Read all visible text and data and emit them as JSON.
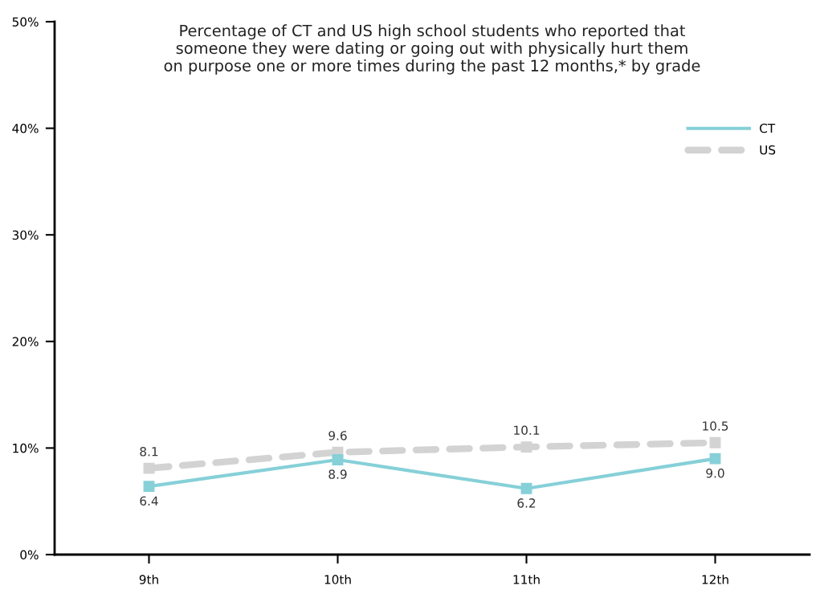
{
  "chart_data": {
    "type": "line",
    "title": "Percentage of CT and US high school students who reported that\nsomeone they were dating or going out with physically hurt them\non purpose one or more times during the past 12 months,* by grade",
    "categories": [
      "9th",
      "10th",
      "11th",
      "12th"
    ],
    "series": [
      {
        "name": "CT",
        "color": "#86d0d8",
        "values": [
          6.4,
          8.9,
          6.2,
          9.0
        ],
        "value_labels": [
          "6.4",
          "8.9",
          "6.2",
          "9.0"
        ],
        "line_style": "solid"
      },
      {
        "name": "US",
        "color": "#d3d3d3",
        "values": [
          8.1,
          9.6,
          10.1,
          10.5
        ],
        "value_labels": [
          "8.1",
          "9.6",
          "10.1",
          "10.5"
        ],
        "line_style": "dashed"
      }
    ],
    "ylim": [
      0,
      50
    ],
    "yticks": [
      {
        "value": 0,
        "label": "0%"
      },
      {
        "value": 10,
        "label": "10%"
      },
      {
        "value": 20,
        "label": "20%"
      },
      {
        "value": 30,
        "label": "30%"
      },
      {
        "value": 40,
        "label": "40%"
      },
      {
        "value": 50,
        "label": "50%"
      }
    ],
    "marker": "square",
    "grid": false,
    "legend": "top right"
  }
}
